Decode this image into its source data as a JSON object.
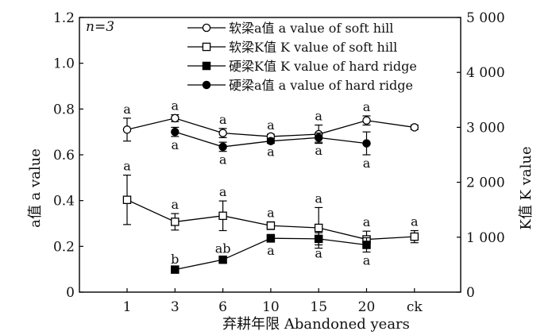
{
  "chart_data": {
    "type": "line",
    "annotation": "n=3",
    "categories": [
      "1",
      "3",
      "6",
      "10",
      "15",
      "20",
      "ck"
    ],
    "xlabel": "弃耕年限 Abandoned years",
    "ylabel_left": "a值 a value",
    "ylabel_right": "K值 K value",
    "ylim_left": [
      0,
      1.2
    ],
    "yticks_left": [
      "0",
      "0.2",
      "0.4",
      "0.6",
      "0.8",
      "1.0",
      "1.2"
    ],
    "ylim_right": [
      0,
      5000
    ],
    "yticks_right": [
      "0",
      "1 000",
      "2 000",
      "3 000",
      "4 000",
      "5 000"
    ],
    "legend_position": "top-center",
    "series": [
      {
        "name": "软梁a值 a value of soft hill",
        "axis": "left",
        "marker": "open-circle",
        "values": [
          0.71,
          0.76,
          0.695,
          0.68,
          0.69,
          0.75,
          0.72
        ],
        "errors": [
          0.05,
          0.015,
          0.02,
          0.01,
          0.04,
          0.02,
          0.01
        ],
        "letters": [
          "a",
          "a",
          "a",
          "a",
          "a",
          "a",
          ""
        ],
        "letter_pos": "above"
      },
      {
        "name": "软梁K值 K value of soft hill",
        "axis": "right",
        "marker": "open-square",
        "values": [
          1680,
          1280,
          1390,
          1210,
          1170,
          960,
          1010
        ],
        "errors": [
          450,
          150,
          270,
          70,
          370,
          150,
          110
        ],
        "letters": [
          "a",
          "a",
          "a",
          "a",
          "a",
          "a",
          "a"
        ],
        "letter_pos": "above"
      },
      {
        "name": "硬梁K值 K value of hard ridge",
        "axis": "right",
        "marker": "filled-square",
        "values": [
          null,
          410,
          590,
          980,
          970,
          860,
          null
        ],
        "errors": [
          null,
          20,
          40,
          70,
          110,
          130,
          null
        ],
        "letters": [
          "",
          "b",
          "ab",
          "a",
          "a",
          "a",
          ""
        ],
        "letter_pos_list": [
          "",
          "above",
          "above",
          "below",
          "below",
          "below",
          ""
        ]
      },
      {
        "name": "硬梁a值 a value of hard ridge",
        "axis": "left",
        "marker": "filled-circle",
        "values": [
          null,
          0.7,
          0.635,
          0.66,
          0.675,
          0.65,
          null
        ],
        "errors": [
          null,
          0.02,
          0.02,
          0.01,
          0.02,
          0.05,
          null
        ],
        "letters": [
          "",
          "a",
          "a",
          "a",
          "a",
          "a",
          ""
        ],
        "letter_pos": "below"
      }
    ]
  }
}
